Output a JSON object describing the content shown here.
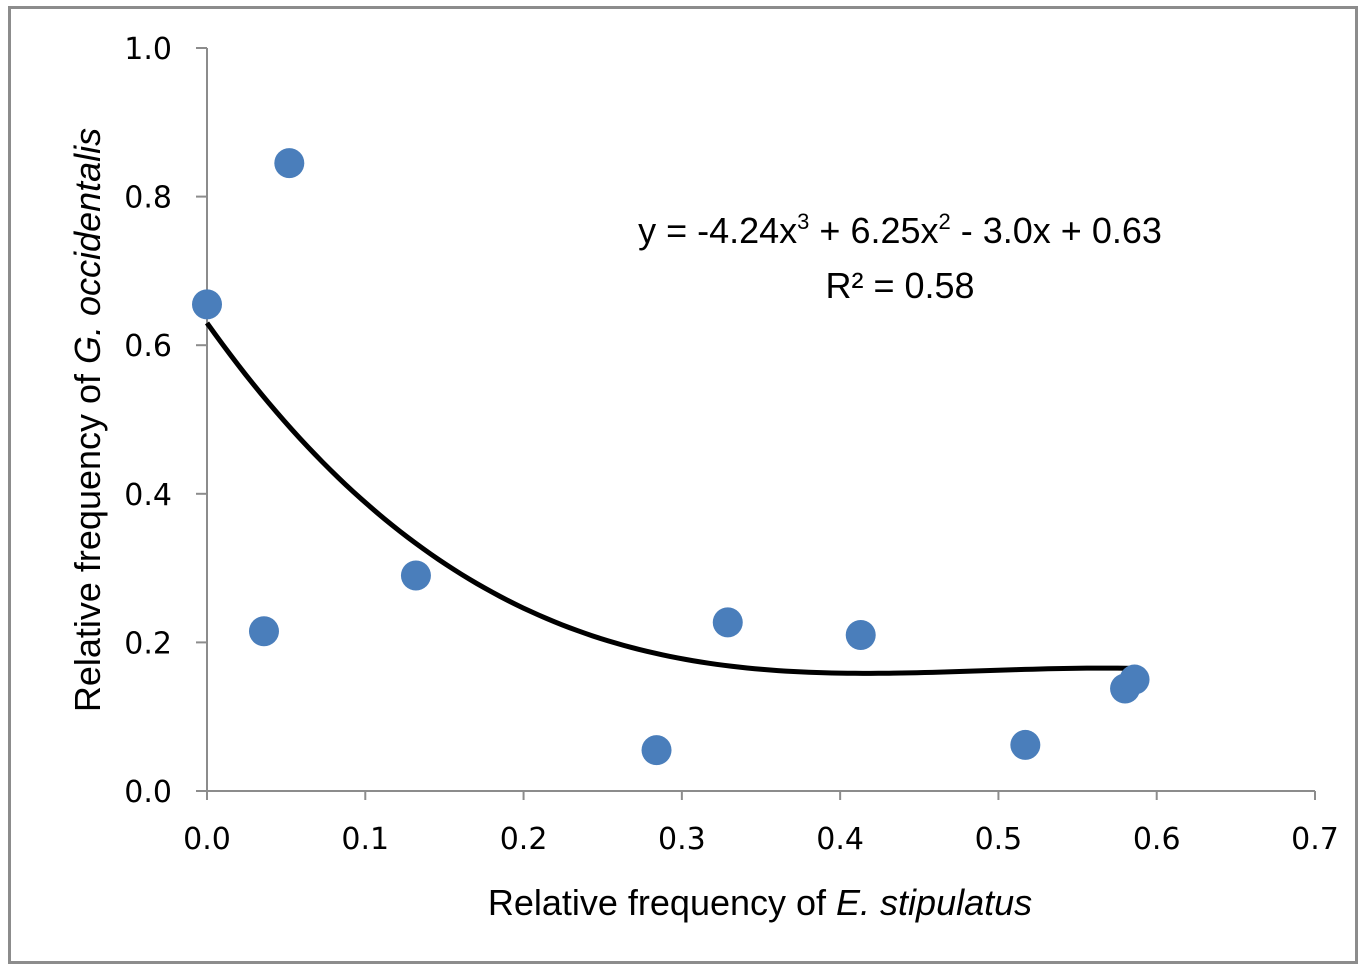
{
  "chart_data": {
    "type": "scatter",
    "xlabel_prefix": "Relative frequency of ",
    "xlabel_italic": "E. stipulatus",
    "ylabel_prefix": "Relative frequency of  ",
    "ylabel_italic": "G. occidentalis",
    "xlim": [
      0.0,
      0.7
    ],
    "ylim": [
      0.0,
      1.0
    ],
    "x_ticks": [
      "0.0",
      "0.1",
      "0.2",
      "0.3",
      "0.4",
      "0.5",
      "0.6",
      "0.7"
    ],
    "y_ticks": [
      "0.0",
      "0.2",
      "0.4",
      "0.6",
      "0.8",
      "1.0"
    ],
    "points": [
      {
        "x": 0.0,
        "y": 0.655
      },
      {
        "x": 0.036,
        "y": 0.215
      },
      {
        "x": 0.052,
        "y": 0.845
      },
      {
        "x": 0.132,
        "y": 0.29
      },
      {
        "x": 0.284,
        "y": 0.055
      },
      {
        "x": 0.329,
        "y": 0.227
      },
      {
        "x": 0.413,
        "y": 0.21
      },
      {
        "x": 0.517,
        "y": 0.062
      },
      {
        "x": 0.58,
        "y": 0.138
      },
      {
        "x": 0.586,
        "y": 0.15
      }
    ],
    "trendline": {
      "type": "cubic",
      "coefficients": [
        -4.24,
        6.25,
        -3.0,
        0.63
      ],
      "x_range": [
        0.0,
        0.585
      ],
      "equation": {
        "prefix": "y = -4.24x",
        "sup1": "3",
        "mid": " + 6.25x",
        "sup2": "2",
        "suffix": " - 3.0x + 0.63"
      },
      "r_squared_label": "R² = 0.58"
    },
    "point_color": "#4a7ebb",
    "line_color": "#000000",
    "grid": false
  }
}
